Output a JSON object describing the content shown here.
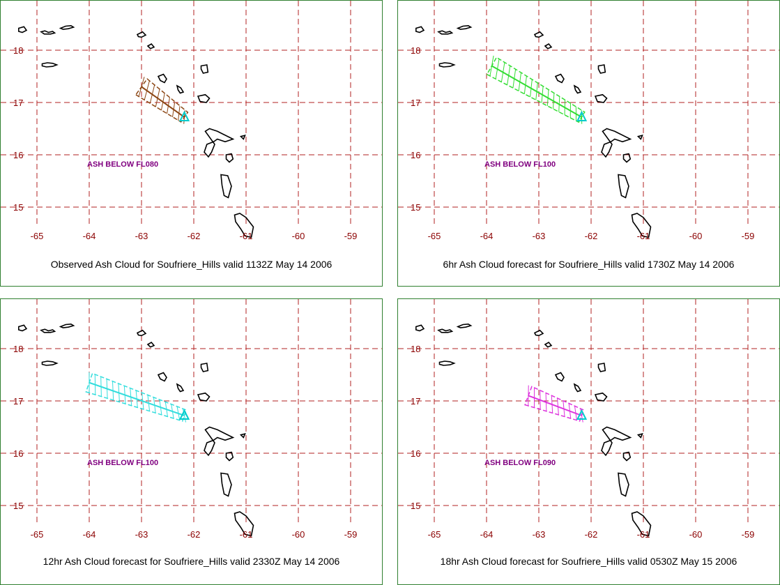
{
  "map": {
    "lat_ticks": [
      "18",
      "17",
      "16",
      "15"
    ],
    "lon_ticks": [
      "-65",
      "-64",
      "-63",
      "-62",
      "-61",
      "-60",
      "-59"
    ],
    "grid_color": "#b22222",
    "coast_color": "#000000",
    "volcano_marker_color": "#00cccc"
  },
  "panels": [
    {
      "caption": "Observed Ash Cloud for Soufriere_Hills valid 1132Z May 14 2006",
      "ash_label": "ASH BELOW FL080",
      "plume_color": "#8b4513",
      "plume_start": [
        -63.0,
        17.3
      ]
    },
    {
      "caption": "6hr Ash Cloud forecast for Soufriere_Hills valid 1730Z May 14 2006",
      "ash_label": "ASH BELOW FL100",
      "plume_color": "#33dd33",
      "plume_start": [
        -63.9,
        17.7
      ]
    },
    {
      "caption": "12hr Ash Cloud forecast for Soufriere_Hills valid 2330Z May 14 2006",
      "ash_label": "ASH BELOW FL100",
      "plume_color": "#33dddd",
      "plume_start": [
        -64.0,
        17.35
      ]
    },
    {
      "caption": "18hr Ash Cloud forecast for Soufriere_Hills valid 0530Z May 15 2006",
      "ash_label": "ASH BELOW FL090",
      "plume_color": "#dd33dd",
      "plume_start": [
        -63.2,
        17.1
      ]
    }
  ],
  "volcano": {
    "lon": -62.18,
    "lat": 16.72
  }
}
